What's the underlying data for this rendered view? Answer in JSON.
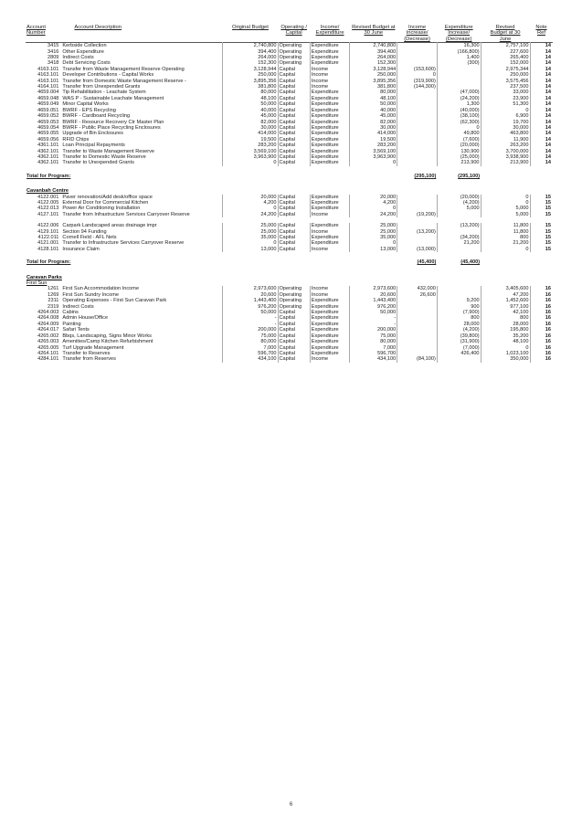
{
  "headers": {
    "account": "Account",
    "number": "Number",
    "description": "Account Description",
    "original_budget": "Original Budget",
    "operating_l1": "Operating /",
    "operating_l2": "Capital",
    "income_l1": "Income/",
    "income_l2": "Expenditure",
    "revised_l1": "Revised Budget at",
    "revised_l2": "30 June",
    "inc_l1": "Income",
    "inc_l2": "Increase/",
    "inc_l3": "(Decrease)",
    "exp_l1": "Expenditure",
    "exp_l2": "Increase/",
    "exp_l3": "(Decrease)",
    "revb_l1": "Revised",
    "revb_l2": "Budget at 30",
    "revb_l3": "June",
    "note_l1": "Note",
    "note_l2": "Ref"
  },
  "section1": {
    "rows": [
      {
        "code": "3415",
        "desc": "Kerbside Collection",
        "orig": "2,740,800",
        "type": "Operating",
        "ie": "Expenditure",
        "rev": "2,740,800",
        "inc": "",
        "exp": "16,300",
        "revb": "2,757,100",
        "note": "14"
      },
      {
        "code": "3416",
        "desc": "Other Expenditure",
        "orig": "394,400",
        "type": "Operating",
        "ie": "Expenditure",
        "rev": "394,400",
        "inc": "",
        "exp": "(166,800)",
        "revb": "227,600",
        "note": "14"
      },
      {
        "code": "2809",
        "desc": "Indirect Costs",
        "orig": "264,000",
        "type": "Operating",
        "ie": "Expenditure",
        "rev": "264,000",
        "inc": "",
        "exp": "1,400",
        "revb": "265,400",
        "note": "14"
      },
      {
        "code": "3418",
        "desc": "Debt Servicing Costs",
        "orig": "152,300",
        "type": "Operating",
        "ie": "Expenditure",
        "rev": "152,300",
        "inc": "",
        "exp": "(300)",
        "revb": "152,000",
        "note": "14"
      },
      {
        "code": "4163.101",
        "desc": "Transfer from Waste Management Reserve Operating",
        "orig": "3,128,944",
        "type": "Capital",
        "ie": "Income",
        "rev": "3,128,944",
        "inc": "(153,600)",
        "exp": "",
        "revb": "2,975,344",
        "note": "14"
      },
      {
        "code": "4163.101",
        "desc": "Developer Contributions - Capital Works",
        "orig": "250,000",
        "type": "Capital",
        "ie": "Income",
        "rev": "250,000",
        "inc": "0",
        "exp": "",
        "revb": "250,000",
        "note": "14"
      },
      {
        "code": "4163.101",
        "desc": "Transfer from Domestic Waste Management Reserve -",
        "orig": "3,895,356",
        "type": "Capital",
        "ie": "Income",
        "rev": "3,895,356",
        "inc": "(319,900)",
        "exp": "",
        "revb": "3,575,456",
        "note": "14"
      },
      {
        "code": "4164.101",
        "desc": "Transfer from Unexpended Grants",
        "orig": "381,800",
        "type": "Capital",
        "ie": "Income",
        "rev": "381,800",
        "inc": "(144,300)",
        "exp": "",
        "revb": "237,500",
        "note": "14"
      },
      {
        "code": "4659.004",
        "desc": "Tip Rehabilitation - Leachate System",
        "orig": "80,000",
        "type": "Capital",
        "ie": "Expenditure",
        "rev": "80,000",
        "inc": "",
        "exp": "(47,000)",
        "revb": "33,000",
        "note": "14"
      },
      {
        "code": "4659.048",
        "desc": "WAS P - Sustainable Leachate Management",
        "orig": "48,100",
        "type": "Capital",
        "ie": "Expenditure",
        "rev": "48,100",
        "inc": "",
        "exp": "(24,200)",
        "revb": "23,900",
        "note": "14"
      },
      {
        "code": "4659.049",
        "desc": "Minor Capital Works",
        "orig": "50,000",
        "type": "Capital",
        "ie": "Expenditure",
        "rev": "50,000",
        "inc": "",
        "exp": "1,300",
        "revb": "51,300",
        "note": "14"
      },
      {
        "code": "4659.051",
        "desc": "BWRF - EPS Recycling",
        "orig": "40,000",
        "type": "Capital",
        "ie": "Expenditure",
        "rev": "40,000",
        "inc": "",
        "exp": "(40,000)",
        "revb": "0",
        "note": "14"
      },
      {
        "code": "4659.052",
        "desc": "BWRF - Cardboard Recycling",
        "orig": "45,000",
        "type": "Capital",
        "ie": "Expenditure",
        "rev": "45,000",
        "inc": "",
        "exp": "(38,100)",
        "revb": "6,900",
        "note": "14"
      },
      {
        "code": "4659.053",
        "desc": "BWRF - Resource Recovery Ctr Master Plan",
        "orig": "82,000",
        "type": "Capital",
        "ie": "Expenditure",
        "rev": "82,000",
        "inc": "",
        "exp": "(62,300)",
        "revb": "19,700",
        "note": "14"
      },
      {
        "code": "4659.054",
        "desc": "BWRF - Public Place Recycling Enclosures",
        "orig": "30,000",
        "type": "Capital",
        "ie": "Expenditure",
        "rev": "30,000",
        "inc": "",
        "exp": "0",
        "revb": "30,000",
        "note": "14"
      },
      {
        "code": "4659.055",
        "desc": "Upgrade of Bin Enclosures",
        "orig": "414,000",
        "type": "Capital",
        "ie": "Expenditure",
        "rev": "414,000",
        "inc": "",
        "exp": "49,800",
        "revb": "463,800",
        "note": "14"
      },
      {
        "code": "4659.056",
        "desc": "RFID Chips",
        "orig": "19,500",
        "type": "Capital",
        "ie": "Expenditure",
        "rev": "19,500",
        "inc": "",
        "exp": "(7,600)",
        "revb": "11,900",
        "note": "14"
      },
      {
        "code": "4361.101",
        "desc": "Loan Principal Repayments",
        "orig": "283,200",
        "type": "Capital",
        "ie": "Expenditure",
        "rev": "283,200",
        "inc": "",
        "exp": "(20,000)",
        "revb": "263,200",
        "note": "14"
      },
      {
        "code": "4362.101",
        "desc": "Transfer to Waste Management Reserve",
        "orig": "3,569,100",
        "type": "Capital",
        "ie": "Expenditure",
        "rev": "3,569,100",
        "inc": "",
        "exp": "130,900",
        "revb": "3,700,000",
        "note": "14"
      },
      {
        "code": "4362.101",
        "desc": "Transfer to Domestic Waste Reserve",
        "orig": "3,963,900",
        "type": "Capital",
        "ie": "Expenditure",
        "rev": "3,963,900",
        "inc": "",
        "exp": "(25,000)",
        "revb": "3,938,900",
        "note": "14"
      },
      {
        "code": "4362.101",
        "desc": "Transfer to Unexpended Grants",
        "orig": "0",
        "type": "Capital",
        "ie": "Expenditure",
        "rev": "0",
        "inc": "",
        "exp": "213,900",
        "revb": "213,900",
        "note": "14"
      }
    ],
    "total_label": "Total for Program:",
    "total_inc": "(295,100)",
    "total_exp": "(295,100)"
  },
  "section2": {
    "title": "Cavanbah Centre",
    "rows_a": [
      {
        "code": "4122.001",
        "desc": "Paver renovation/Add desk/office space",
        "orig": "20,000",
        "type": "Capital",
        "ie": "Expenditure",
        "rev": "20,000",
        "inc": "",
        "exp": "(20,000)",
        "revb": "0",
        "note": "15"
      },
      {
        "code": "4122.005",
        "desc": "External Door for Commercial Kitchen",
        "orig": "4,200",
        "type": "Capital",
        "ie": "Expenditure",
        "rev": "4,200",
        "inc": "",
        "exp": "(4,200)",
        "revb": "0",
        "note": "15"
      },
      {
        "code": "4122.013",
        "desc": "Power Air Conditioning Installation",
        "orig": "0",
        "type": "Capital",
        "ie": "Expenditure",
        "rev": "0",
        "inc": "",
        "exp": "5,000",
        "revb": "5,000",
        "note": "15"
      },
      {
        "code": "4127.101",
        "desc": "Transfer from Infrastructure Services Carryover Reserve",
        "orig": "24,200",
        "type": "Capital",
        "ie": "Income",
        "rev": "24,200",
        "inc": "(19,200)",
        "exp": "",
        "revb": "5,000",
        "note": "15"
      }
    ],
    "rows_b": [
      {
        "code": "4122.006",
        "desc": "Carpark Landscaped areas drainage impr",
        "orig": "25,000",
        "type": "Capital",
        "ie": "Expenditure",
        "rev": "25,000",
        "inc": "",
        "exp": "(13,200)",
        "revb": "11,800",
        "note": "15"
      },
      {
        "code": "4129.101",
        "desc": "Section 94 Funding",
        "orig": "25,000",
        "type": "Capital",
        "ie": "Income",
        "rev": "25,000",
        "inc": "(13,200)",
        "exp": "",
        "revb": "11,800",
        "note": "15"
      },
      {
        "code": "4122.011",
        "desc": "Cornell Field - AFL Nets",
        "orig": "35,000",
        "type": "Capital",
        "ie": "Expenditure",
        "rev": "35,000",
        "inc": "",
        "exp": "(34,200)",
        "revb": "800",
        "note": "15"
      },
      {
        "code": "4121.001",
        "desc": "Transfer to Infrastructure Services Carryover Reserve",
        "orig": "0",
        "type": "Capital",
        "ie": "Expenditure",
        "rev": "0",
        "inc": "",
        "exp": "21,200",
        "revb": "21,200",
        "note": "15"
      },
      {
        "code": "4128.101",
        "desc": "Insurance Claim",
        "orig": "13,000",
        "type": "Capital",
        "ie": "Income",
        "rev": "13,000",
        "inc": "(13,000)",
        "exp": "",
        "revb": "0",
        "note": "15"
      }
    ],
    "total_label": "Total for Program:",
    "total_inc": "(45,400)",
    "total_exp": "(45,400)"
  },
  "section3": {
    "title": "Caravan Parks",
    "subtitle": "First Sun",
    "rows": [
      {
        "code": "1261",
        "desc": "First Sun Accommodation Income",
        "orig": "2,973,600",
        "type": "Operating",
        "ie": "Income",
        "rev": "2,973,600",
        "inc": "432,000",
        "exp": "",
        "revb": "3,405,600",
        "note": "16"
      },
      {
        "code": "1269",
        "desc": "First Sun Sundry Income",
        "orig": "20,600",
        "type": "Operating",
        "ie": "Income",
        "rev": "20,600",
        "inc": "26,600",
        "exp": "",
        "revb": "47,200",
        "note": "16"
      },
      {
        "code": "2311",
        "desc": "Operating Expenses - First Sun Caravan Park",
        "orig": "1,443,400",
        "type": "Operating",
        "ie": "Expenditure",
        "rev": "1,443,400",
        "inc": "",
        "exp": "9,200",
        "revb": "1,452,600",
        "note": "16"
      },
      {
        "code": "2319",
        "desc": "Indirect Costs",
        "orig": "976,200",
        "type": "Operating",
        "ie": "Expenditure",
        "rev": "976,200",
        "inc": "",
        "exp": "900",
        "revb": "977,100",
        "note": "16"
      },
      {
        "code": "4264.003",
        "desc": "Cabins",
        "orig": "50,000",
        "type": "Capital",
        "ie": "Expenditure",
        "rev": "50,000",
        "inc": "",
        "exp": "(7,900)",
        "revb": "42,100",
        "note": "16"
      },
      {
        "code": "4264.008",
        "desc": "Admin House/Office",
        "orig": "-",
        "type": "Capital",
        "ie": "Expenditure",
        "rev": "-",
        "inc": "",
        "exp": "800",
        "revb": "800",
        "note": "16"
      },
      {
        "code": "4264.009",
        "desc": "Painting",
        "orig": "-",
        "type": "Capital",
        "ie": "Expenditure",
        "rev": "-",
        "inc": "",
        "exp": "28,000",
        "revb": "28,000",
        "note": "16"
      },
      {
        "code": "4264.017",
        "desc": "Safari Tents",
        "orig": "200,000",
        "type": "Capital",
        "ie": "Expenditure",
        "rev": "200,000",
        "inc": "",
        "exp": "(4,200)",
        "revb": "195,800",
        "note": "16"
      },
      {
        "code": "4265.002",
        "desc": "Bbqs, Landscaping, Signs Minor Works",
        "orig": "75,000",
        "type": "Capital",
        "ie": "Expenditure",
        "rev": "75,000",
        "inc": "",
        "exp": "(39,800)",
        "revb": "35,200",
        "note": "16"
      },
      {
        "code": "4265.003",
        "desc": "Amenities/Camp Kitchen Refurbishment",
        "orig": "80,000",
        "type": "Capital",
        "ie": "Expenditure",
        "rev": "80,000",
        "inc": "",
        "exp": "(31,900)",
        "revb": "48,100",
        "note": "16"
      },
      {
        "code": "4265.005",
        "desc": "Turf Upgrade Management",
        "orig": "7,000",
        "type": "Capital",
        "ie": "Expenditure",
        "rev": "7,000",
        "inc": "",
        "exp": "(7,000)",
        "revb": "0",
        "note": "16"
      },
      {
        "code": "4264.101",
        "desc": "Transfer to Reserves",
        "orig": "596,700",
        "type": "Capital",
        "ie": "Expenditure",
        "rev": "596,700",
        "inc": "",
        "exp": "426,400",
        "revb": "1,023,100",
        "note": "16"
      },
      {
        "code": "4284.101",
        "desc": "Transfer from Reserves",
        "orig": "434,100",
        "type": "Capital",
        "ie": "Income",
        "rev": "434,100",
        "inc": "(84,100)",
        "exp": "",
        "revb": "350,000",
        "note": "16"
      }
    ]
  },
  "footer": {
    "page_number": "6"
  }
}
